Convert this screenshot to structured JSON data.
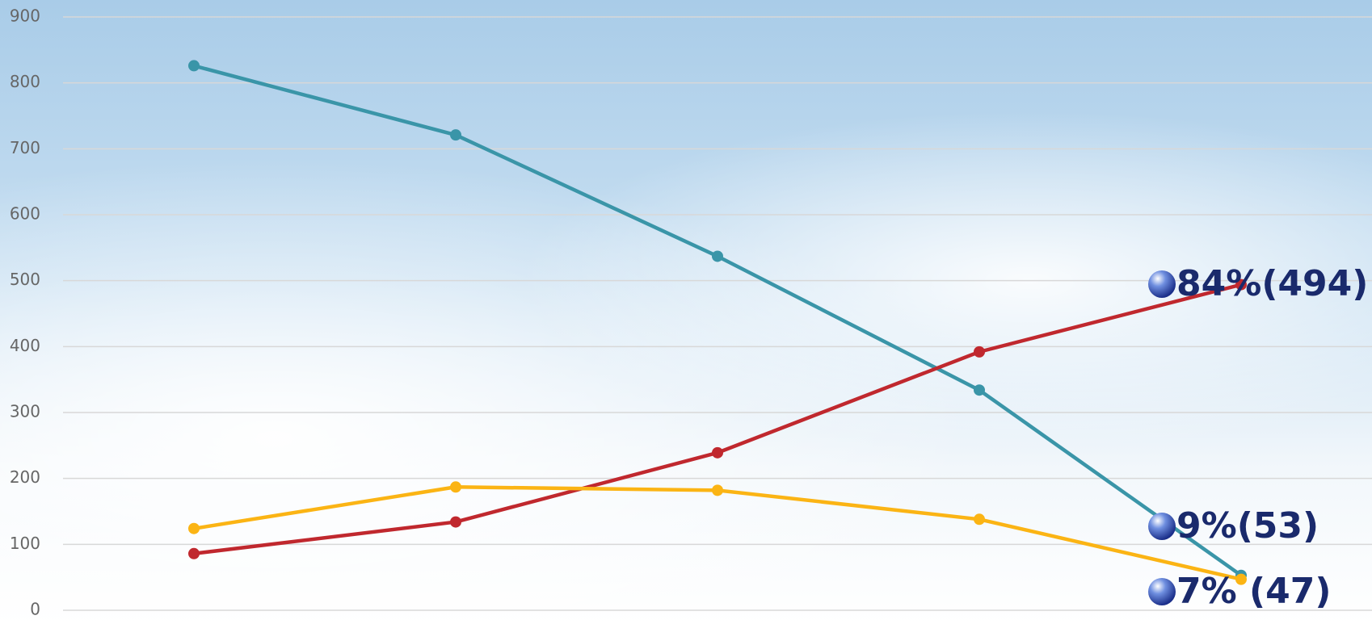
{
  "chart_data": {
    "type": "line",
    "categories": [
      null,
      null,
      null,
      null,
      null
    ],
    "series": [
      {
        "color": "#3a95a8",
        "values": [
          826,
          721,
          537,
          334,
          53
        ],
        "value_labels": [
          null,
          null,
          null,
          null,
          "9%(53)"
        ]
      },
      {
        "color": "#c0282e",
        "values": [
          86,
          134,
          239,
          392,
          494
        ],
        "value_labels": [
          null,
          null,
          null,
          null,
          "84%(494)"
        ]
      },
      {
        "color": "#fbb414",
        "values": [
          124,
          187,
          182,
          138,
          47
        ],
        "value_labels": [
          null,
          null,
          null,
          null,
          "7% (47)"
        ]
      }
    ],
    "ylim": [
      0,
      900
    ],
    "yticks": [
      0,
      100,
      200,
      300,
      400,
      500,
      600,
      700,
      800,
      900
    ],
    "grid": true
  }
}
